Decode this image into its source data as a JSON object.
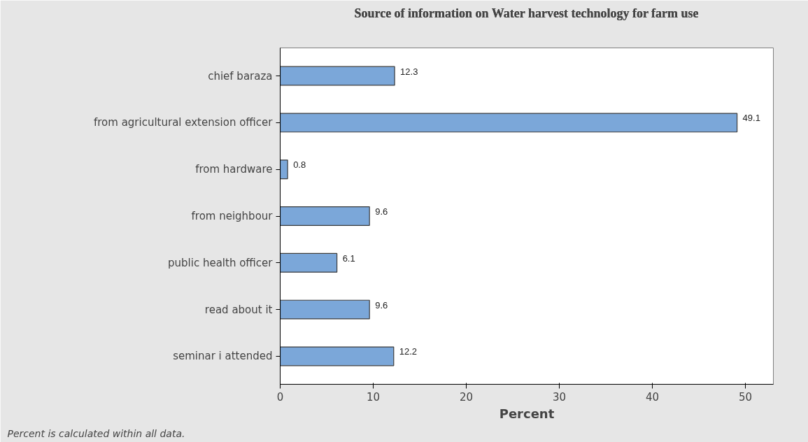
{
  "chart_data": {
    "type": "bar",
    "orientation": "horizontal",
    "title": "Source of information on Water harvest technology for farm use",
    "xlabel": "Percent",
    "categories": [
      "chief baraza",
      "from agricultural extension officer",
      "from hardware",
      "from neighbour",
      "public health officer",
      "read about it",
      "seminar i attended"
    ],
    "values": [
      12.3,
      49.1,
      0.8,
      9.6,
      6.1,
      9.6,
      12.2
    ],
    "color": "#7ba7d9",
    "xlim": [
      0,
      53
    ],
    "xticks": [
      0,
      10,
      20,
      30,
      40,
      50
    ],
    "data_labels": true,
    "grid": false,
    "annotations": [
      "Percent is calculated within all data."
    ]
  }
}
